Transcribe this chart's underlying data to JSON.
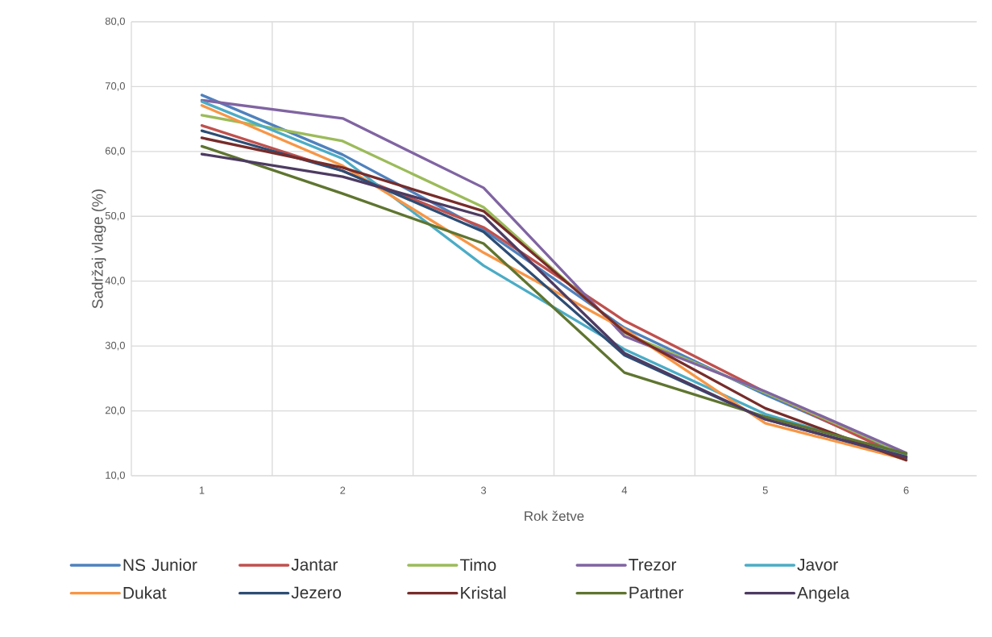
{
  "chart_data": {
    "type": "line",
    "xlabel": "Rok žetve",
    "ylabel": "Sadržaj vlage (%)",
    "categories": [
      "1",
      "2",
      "3",
      "4",
      "5",
      "6"
    ],
    "series": [
      {
        "name": "NS Junior",
        "color": "#4f81bd",
        "values": [
          68.7,
          59.5,
          47.9,
          32.8,
          22.5,
          13.0
        ]
      },
      {
        "name": "Jantar",
        "color": "#c0504d",
        "values": [
          64.0,
          57.0,
          48.3,
          33.9,
          22.9,
          12.6
        ]
      },
      {
        "name": "Timo",
        "color": "#9bbb59",
        "values": [
          65.6,
          61.6,
          51.4,
          32.0,
          22.8,
          13.3
        ]
      },
      {
        "name": "Trezor",
        "color": "#8064a2",
        "values": [
          67.9,
          65.1,
          54.4,
          31.5,
          23.0,
          13.5
        ]
      },
      {
        "name": "Javor",
        "color": "#4bacc6",
        "values": [
          67.7,
          58.9,
          42.4,
          29.5,
          19.5,
          13.0
        ]
      },
      {
        "name": "Dukat",
        "color": "#f79646",
        "values": [
          67.1,
          57.8,
          44.4,
          32.6,
          18.1,
          12.5
        ]
      },
      {
        "name": "Jezero",
        "color": "#2c4d75",
        "values": [
          63.2,
          57.0,
          47.6,
          28.6,
          18.7,
          12.8
        ]
      },
      {
        "name": "Kristal",
        "color": "#772c2a",
        "values": [
          62.1,
          57.5,
          50.8,
          32.2,
          20.4,
          12.4
        ]
      },
      {
        "name": "Partner",
        "color": "#5f7530",
        "values": [
          60.8,
          53.5,
          45.8,
          25.9,
          19.1,
          13.4
        ]
      },
      {
        "name": "Angela",
        "color": "#4d3b62",
        "values": [
          59.6,
          56.1,
          50.0,
          28.9,
          18.7,
          12.9
        ]
      }
    ],
    "ylim": [
      10,
      80
    ],
    "yticks": [
      {
        "value": 10,
        "label": "10,0"
      },
      {
        "value": 20,
        "label": "20,0"
      },
      {
        "value": 30,
        "label": "30,0"
      },
      {
        "value": 40,
        "label": "40,0"
      },
      {
        "value": 50,
        "label": "50,0"
      },
      {
        "value": 60,
        "label": "60,0"
      },
      {
        "value": 70,
        "label": "70,0"
      },
      {
        "value": 80,
        "label": "80,0"
      }
    ],
    "grid": true,
    "legend": "bottom",
    "marker": "none",
    "line_style": "solid"
  }
}
